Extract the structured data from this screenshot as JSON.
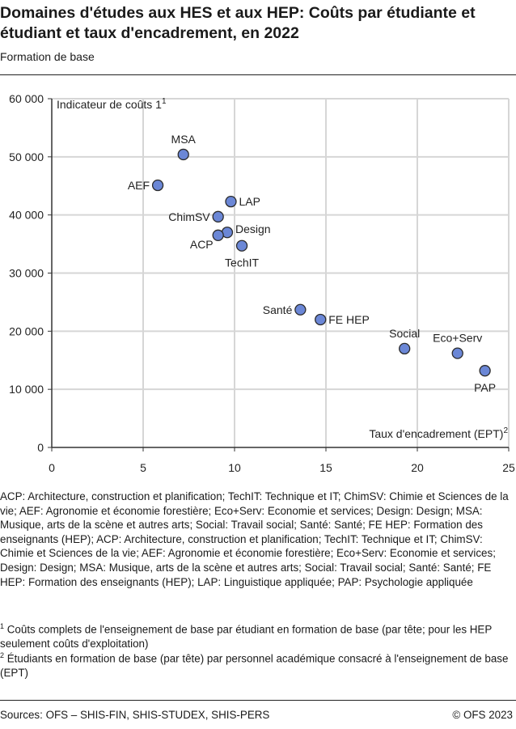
{
  "title": "Domaines d'études aux HES et aux HEP: Coûts par étudiante et étudiant et taux d'encadrement, en 2022",
  "subtitle": "Formation de base",
  "chart_data": {
    "type": "scatter",
    "xlabel": "Taux d'encadrement (EPT)",
    "xlabel_sup": "2",
    "ylabel": "Indicateur de coûts 1",
    "ylabel_sup": "1",
    "xlim": [
      0,
      25
    ],
    "ylim": [
      0,
      60000
    ],
    "xticks": [
      0,
      5,
      10,
      15,
      20,
      25
    ],
    "yticks": [
      0,
      10000,
      20000,
      30000,
      40000,
      50000,
      60000
    ],
    "ytick_labels": [
      "0",
      "10 000",
      "20 000",
      "30 000",
      "40 000",
      "50 000",
      "60 000"
    ],
    "grid": true,
    "marker_color": "#6b87d6",
    "marker_edge": "#2b2b2b",
    "points": [
      {
        "label": "MSA",
        "x": 7.2,
        "y": 50400
      },
      {
        "label": "AEF",
        "x": 5.8,
        "y": 45100
      },
      {
        "label": "LAP",
        "x": 9.8,
        "y": 42300
      },
      {
        "label": "ChimSV",
        "x": 9.1,
        "y": 39700
      },
      {
        "label": "Design",
        "x": 9.6,
        "y": 37000
      },
      {
        "label": "ACP",
        "x": 9.1,
        "y": 36500
      },
      {
        "label": "TechIT",
        "x": 10.4,
        "y": 34700
      },
      {
        "label": "Santé",
        "x": 13.6,
        "y": 23700
      },
      {
        "label": "FE HEP",
        "x": 14.7,
        "y": 22000
      },
      {
        "label": "Social",
        "x": 19.3,
        "y": 17000
      },
      {
        "label": "Eco+Serv",
        "x": 22.2,
        "y": 16200
      },
      {
        "label": "PAP",
        "x": 23.7,
        "y": 13200
      }
    ]
  },
  "legend_text": "ACP: Architecture, construction et planification; TechIT: Technique et IT; ChimSV: Chimie et Sciences de la vie; AEF: Agronomie et économie forestière; Eco+Serv: Economie et services; Design: Design; MSA: Musique, arts de la scène et autres arts; Social: Travail social; Santé: Santé; FE HEP: Formation des enseignants (HEP); ACP: Architecture, construction et planification; TechIT: Technique et IT; ChimSV: Chimie et Sciences de la vie; AEF: Agronomie et économie forestière; Eco+Serv: Economie et services; Design: Design; MSA: Musique, arts de la scène et autres arts; Social: Travail social; Santé: Santé; FE HEP: Formation des enseignants (HEP); LAP: Linguistique appliquée; PAP: Psychologie appliquée",
  "footnotes": [
    {
      "mark": "1",
      "text": "Coûts complets de l'enseignement de base par étudiant en formation de base (par tête; pour les HEP seulement coûts d'exploitation)"
    },
    {
      "mark": "2",
      "text": "Étudiants en formation de base (par tête) par personnel académique consacré à l'enseignement de base (EPT)"
    }
  ],
  "sources": "Sources: OFS – SHIS-FIN, SHIS-STUDEX, SHIS-PERS",
  "copyright": "© OFS 2023"
}
